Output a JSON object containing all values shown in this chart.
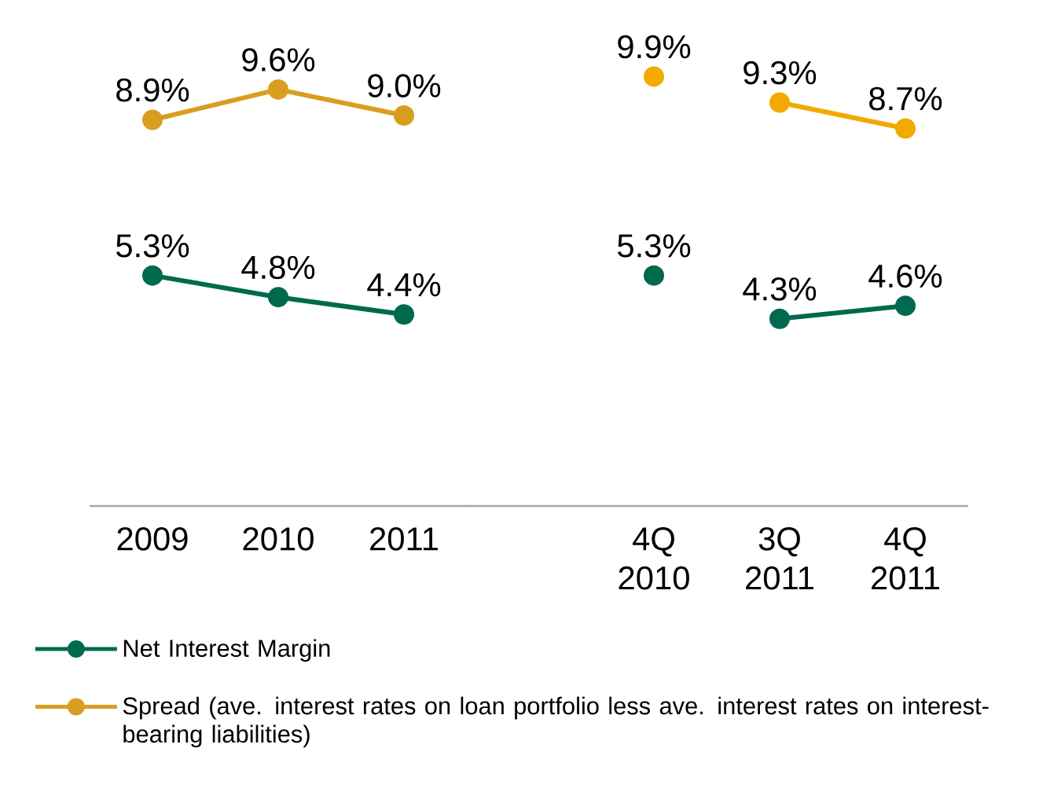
{
  "chart_data": [
    {
      "type": "line",
      "categories": [
        "2009",
        "2010",
        "2011"
      ],
      "marker": "circle",
      "line_style": "solid",
      "legend": "bottom",
      "series": [
        {
          "name": "Spread (ave. interest rates on loan portfolio less ave. interest rates on interest-bearing liabilities)",
          "color": "#d99e1f",
          "values": [
            8.9,
            9.6,
            9.0
          ],
          "value_labels": [
            "8.9%",
            "9.6%",
            "9.0%"
          ]
        },
        {
          "name": "Net Interest Margin",
          "color": "#00694e",
          "values": [
            5.3,
            4.8,
            4.4
          ],
          "value_labels": [
            "5.3%",
            "4.8%",
            "4.4%"
          ]
        }
      ]
    },
    {
      "type": "line",
      "categories": [
        "4Q 2010",
        "3Q 2011",
        "4Q 2011"
      ],
      "marker": "circle",
      "line_style": "solid",
      "series": [
        {
          "color": "#f2a900",
          "values": [
            9.9,
            null,
            null
          ],
          "value_labels": [
            "9.9%",
            null,
            null
          ]
        },
        {
          "color": "#f2a900",
          "values": [
            null,
            9.3,
            8.7
          ],
          "value_labels": [
            null,
            "9.3%",
            "8.7%"
          ]
        },
        {
          "color": "#00694e",
          "values": [
            5.3,
            null,
            null
          ],
          "value_labels": [
            "5.3%",
            null,
            null
          ]
        },
        {
          "color": "#00694e",
          "values": [
            null,
            4.3,
            4.6
          ],
          "value_labels": [
            null,
            "4.3%",
            "4.6%"
          ]
        }
      ]
    }
  ]
}
